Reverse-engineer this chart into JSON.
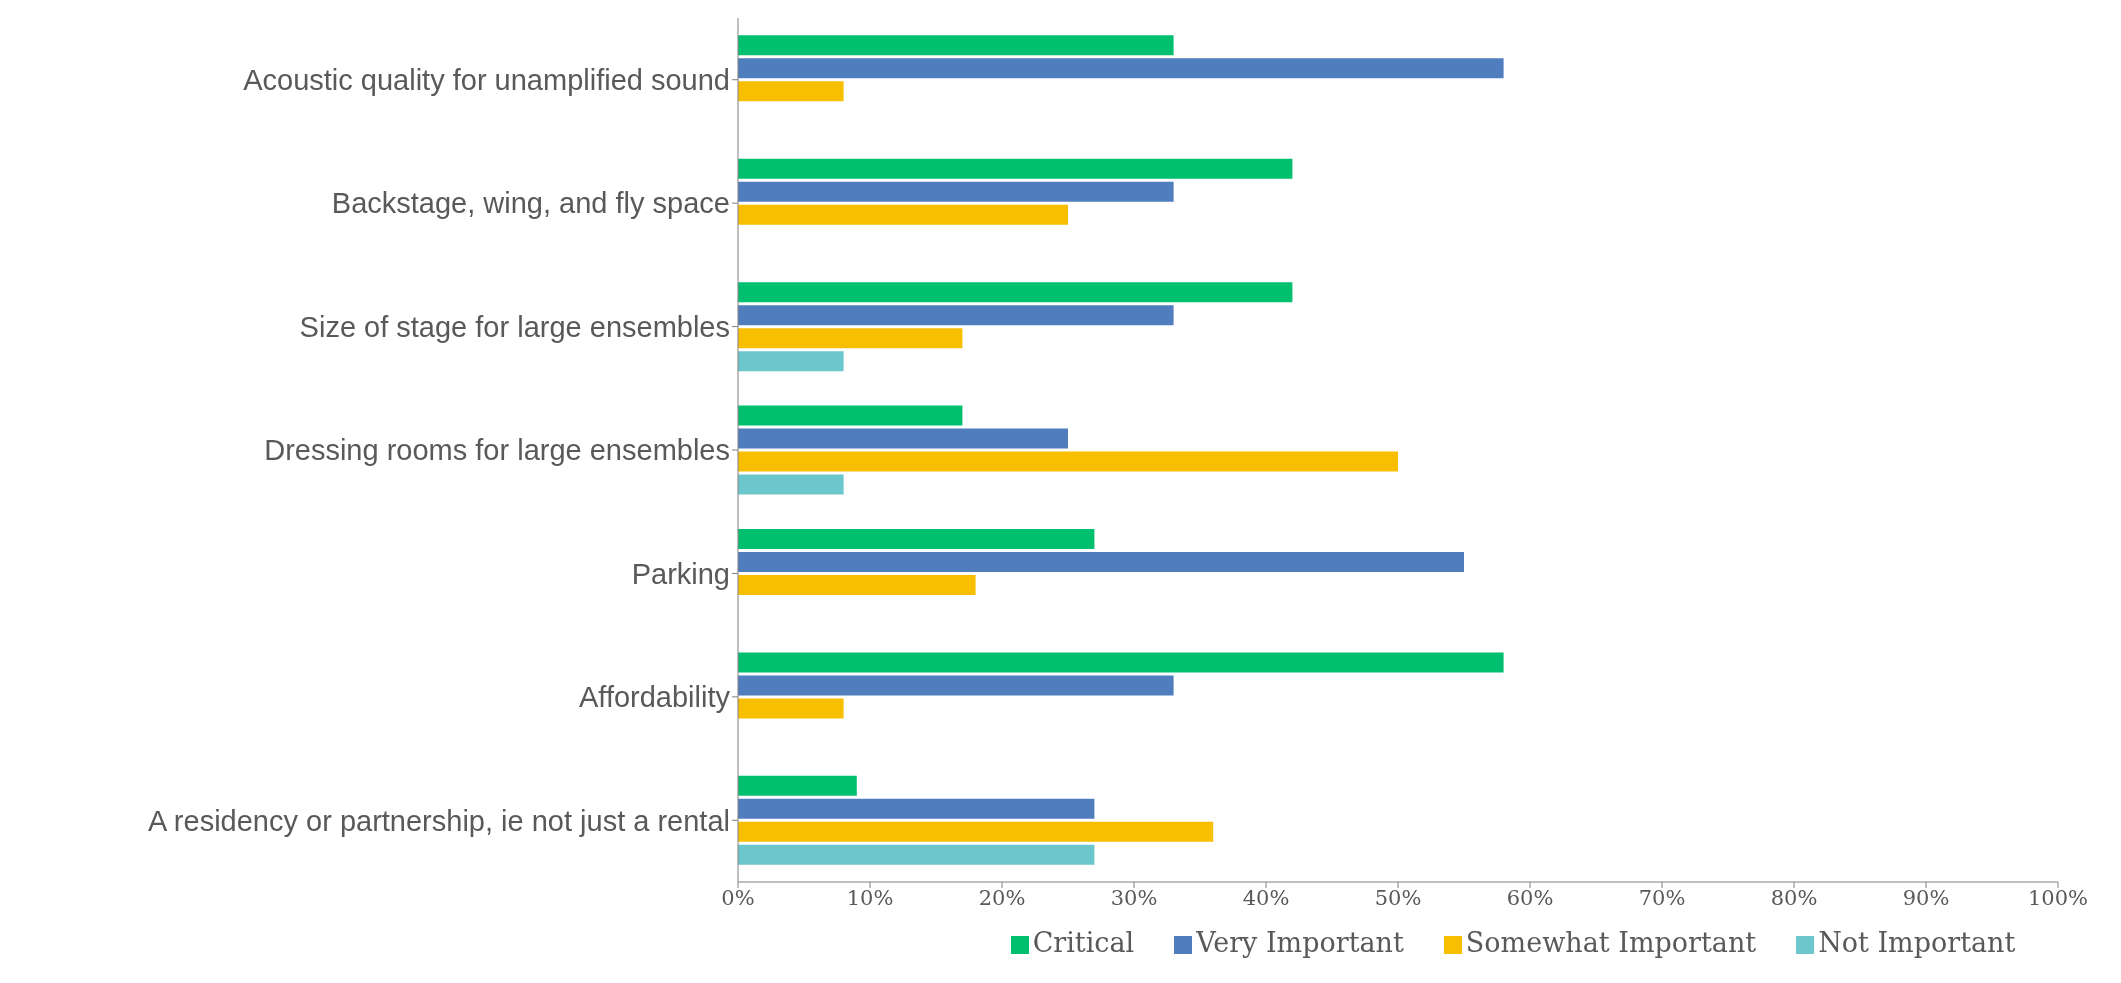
{
  "chart_data": {
    "type": "bar",
    "orientation": "horizontal",
    "categories": [
      "Acoustic quality for unamplified sound",
      "Backstage, wing, and fly space",
      "Size of stage for large ensembles",
      "Dressing rooms for large ensembles",
      "Parking",
      "Affordability",
      "A residency or partnership, ie not just a rental"
    ],
    "series": [
      {
        "name": "Critical",
        "color": "#00bf6f",
        "values": [
          33,
          42,
          42,
          17,
          27,
          58,
          9
        ]
      },
      {
        "name": "Very Important",
        "color": "#4f7dbd",
        "values": [
          58,
          33,
          33,
          25,
          55,
          33,
          27
        ]
      },
      {
        "name": "Somewhat Important",
        "color": "#f7bf00",
        "values": [
          8,
          25,
          17,
          50,
          18,
          8,
          36
        ]
      },
      {
        "name": "Not Important",
        "color": "#6cc7cc",
        "values": [
          null,
          null,
          8,
          8,
          null,
          null,
          27
        ]
      }
    ],
    "xlim": [
      0,
      100
    ],
    "xticks": [
      {
        "value": 0,
        "label": "0%"
      },
      {
        "value": 10,
        "label": "10%"
      },
      {
        "value": 20,
        "label": "20%"
      },
      {
        "value": 30,
        "label": "30%"
      },
      {
        "value": 40,
        "label": "40%"
      },
      {
        "value": 50,
        "label": "50%"
      },
      {
        "value": 60,
        "label": "60%"
      },
      {
        "value": 70,
        "label": "70%"
      },
      {
        "value": 80,
        "label": "80%"
      },
      {
        "value": 90,
        "label": "90%"
      },
      {
        "value": 100,
        "label": "100%"
      }
    ],
    "grid": false,
    "legend": "bottom"
  }
}
